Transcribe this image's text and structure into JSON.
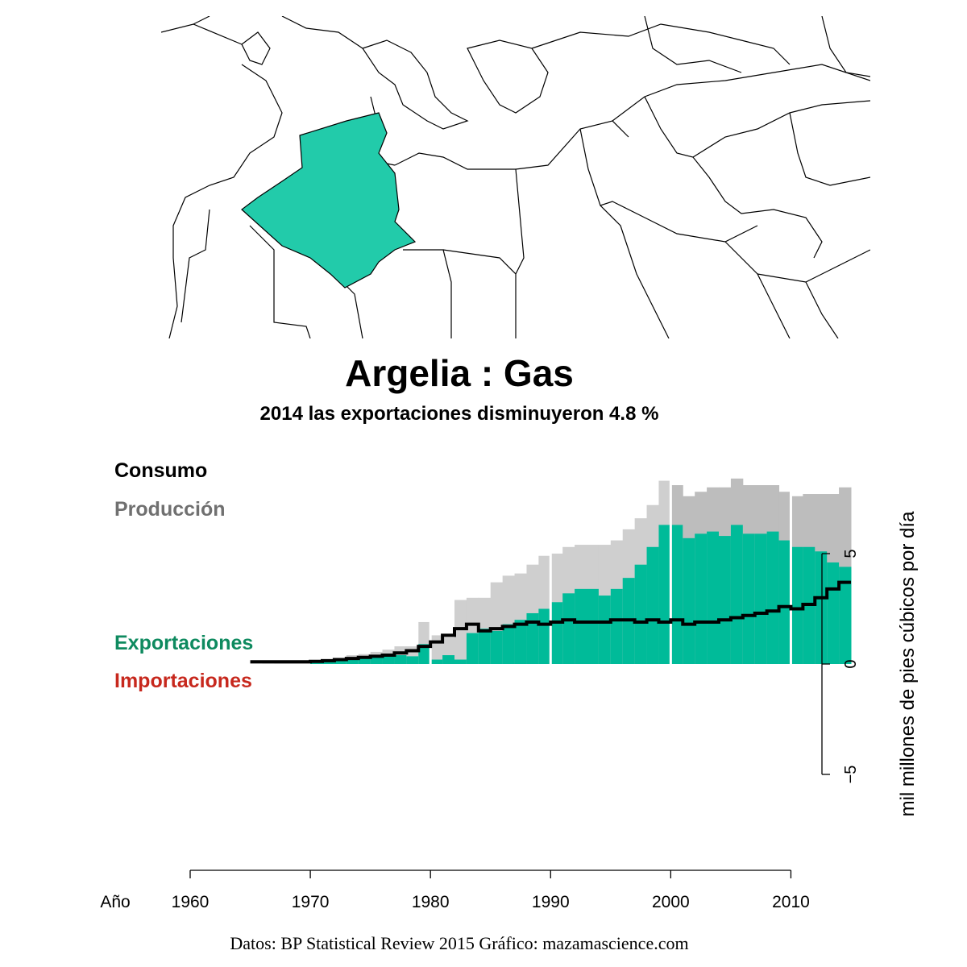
{
  "chart_data": {
    "type": "area",
    "title": "Argelia :  Gas",
    "subtitle": "2014 las exportaciones disminuyeron 4.8 %",
    "xlabel": "Año",
    "ylabel": "mil millones de pies cúbicos por día",
    "xticks": [
      "1960",
      "1970",
      "1980",
      "1990",
      "2000",
      "2010"
    ],
    "yticks": [
      "5",
      "0",
      "−5"
    ],
    "xlim": [
      1960,
      2015
    ],
    "ylim": [
      -9.5,
      9
    ],
    "grid": false,
    "legend": [
      "Consumo",
      "Producción",
      "Exportaciones",
      "Importaciones"
    ],
    "x": [
      1965,
      1966,
      1967,
      1968,
      1969,
      1970,
      1971,
      1972,
      1973,
      1974,
      1975,
      1976,
      1977,
      1978,
      1979,
      1980,
      1981,
      1982,
      1983,
      1984,
      1985,
      1986,
      1987,
      1988,
      1989,
      1990,
      1991,
      1992,
      1993,
      1994,
      1995,
      1996,
      1997,
      1998,
      1999,
      2000,
      2001,
      2002,
      2003,
      2004,
      2005,
      2006,
      2007,
      2008,
      2009,
      2010,
      2011,
      2012,
      2013,
      2014
    ],
    "series": [
      {
        "name": "Producción",
        "color": "#c3c3c3",
        "values": [
          0.02,
          0.03,
          0.04,
          0.05,
          0.07,
          0.1,
          0.15,
          0.25,
          0.4,
          0.45,
          0.55,
          0.65,
          0.8,
          0.8,
          1.9,
          1.3,
          1.2,
          2.9,
          3.0,
          3.0,
          3.7,
          4.0,
          4.1,
          4.5,
          4.9,
          5.0,
          5.3,
          5.4,
          5.4,
          5.4,
          5.6,
          6.1,
          6.6,
          7.2,
          8.3,
          8.1,
          7.6,
          7.8,
          8.0,
          8.0,
          8.4,
          8.1,
          8.1,
          8.1,
          7.8,
          7.6,
          7.7,
          7.7,
          7.7,
          8.0
        ]
      },
      {
        "name": "Exportaciones",
        "color": "#00bb99",
        "values": [
          0,
          0,
          0,
          0,
          0,
          0.05,
          0.1,
          0.15,
          0.2,
          0.25,
          0.3,
          0.35,
          0.4,
          0.35,
          0.9,
          0.2,
          0.4,
          0.2,
          1.4,
          1.6,
          1.5,
          1.8,
          2.0,
          2.3,
          2.5,
          2.8,
          3.2,
          3.4,
          3.4,
          3.1,
          3.4,
          3.9,
          4.5,
          5.3,
          6.3,
          6.3,
          5.7,
          5.9,
          6.0,
          5.8,
          6.3,
          5.9,
          5.9,
          6.0,
          5.6,
          5.3,
          5.3,
          5.1,
          4.6,
          4.4
        ]
      },
      {
        "name": "Consumo",
        "color": "#000000",
        "values": [
          0.1,
          0.1,
          0.1,
          0.1,
          0.1,
          0.12,
          0.15,
          0.2,
          0.25,
          0.3,
          0.35,
          0.4,
          0.5,
          0.6,
          0.8,
          1.0,
          1.3,
          1.6,
          1.8,
          1.5,
          1.6,
          1.7,
          1.8,
          1.9,
          1.8,
          1.9,
          2.0,
          1.9,
          1.9,
          1.9,
          2.0,
          2.0,
          1.9,
          2.0,
          1.9,
          2.0,
          1.8,
          1.9,
          1.9,
          2.0,
          2.1,
          2.2,
          2.3,
          2.4,
          2.6,
          2.5,
          2.7,
          3.0,
          3.4,
          3.7
        ]
      }
    ],
    "decade_year_dividers": [
      1980,
      1990,
      2000,
      2010
    ],
    "highlighted_country": "Argelia",
    "highlight_color": "#22cbaa"
  },
  "legend_colors": {
    "Consumo": "#000000",
    "Producción": "#707070",
    "Exportaciones": "#0e8a5f",
    "Importaciones": "#c7281d"
  },
  "source": "Datos: BP Statistical Review 2015   Gráfico: mazamascience.com"
}
